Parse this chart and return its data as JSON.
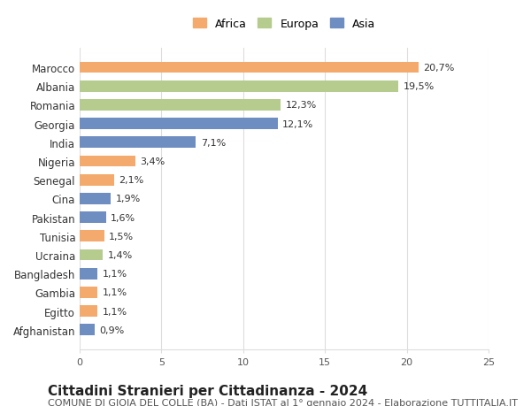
{
  "countries": [
    "Marocco",
    "Albania",
    "Romania",
    "Georgia",
    "India",
    "Nigeria",
    "Senegal",
    "Cina",
    "Pakistan",
    "Tunisia",
    "Ucraina",
    "Bangladesh",
    "Gambia",
    "Egitto",
    "Afghanistan"
  ],
  "values": [
    20.7,
    19.5,
    12.3,
    12.1,
    7.1,
    3.4,
    2.1,
    1.9,
    1.6,
    1.5,
    1.4,
    1.1,
    1.1,
    1.1,
    0.9
  ],
  "labels": [
    "20,7%",
    "19,5%",
    "12,3%",
    "12,1%",
    "7,1%",
    "3,4%",
    "2,1%",
    "1,9%",
    "1,6%",
    "1,5%",
    "1,4%",
    "1,1%",
    "1,1%",
    "1,1%",
    "0,9%"
  ],
  "continents": [
    "Africa",
    "Europa",
    "Europa",
    "Asia",
    "Asia",
    "Africa",
    "Africa",
    "Asia",
    "Asia",
    "Africa",
    "Europa",
    "Asia",
    "Africa",
    "Africa",
    "Asia"
  ],
  "continent_colors": {
    "Africa": "#F4A96D",
    "Europa": "#B5CC8E",
    "Asia": "#6E8DC0"
  },
  "legend_order": [
    "Africa",
    "Europa",
    "Asia"
  ],
  "xlim": [
    0,
    25
  ],
  "xticks": [
    0,
    5,
    10,
    15,
    20,
    25
  ],
  "title": "Cittadini Stranieri per Cittadinanza - 2024",
  "subtitle": "COMUNE DI GIOIA DEL COLLE (BA) - Dati ISTAT al 1° gennaio 2024 - Elaborazione TUTTITALIA.IT",
  "title_fontsize": 11,
  "subtitle_fontsize": 8,
  "background_color": "#ffffff",
  "grid_color": "#dddddd",
  "bar_height": 0.6
}
